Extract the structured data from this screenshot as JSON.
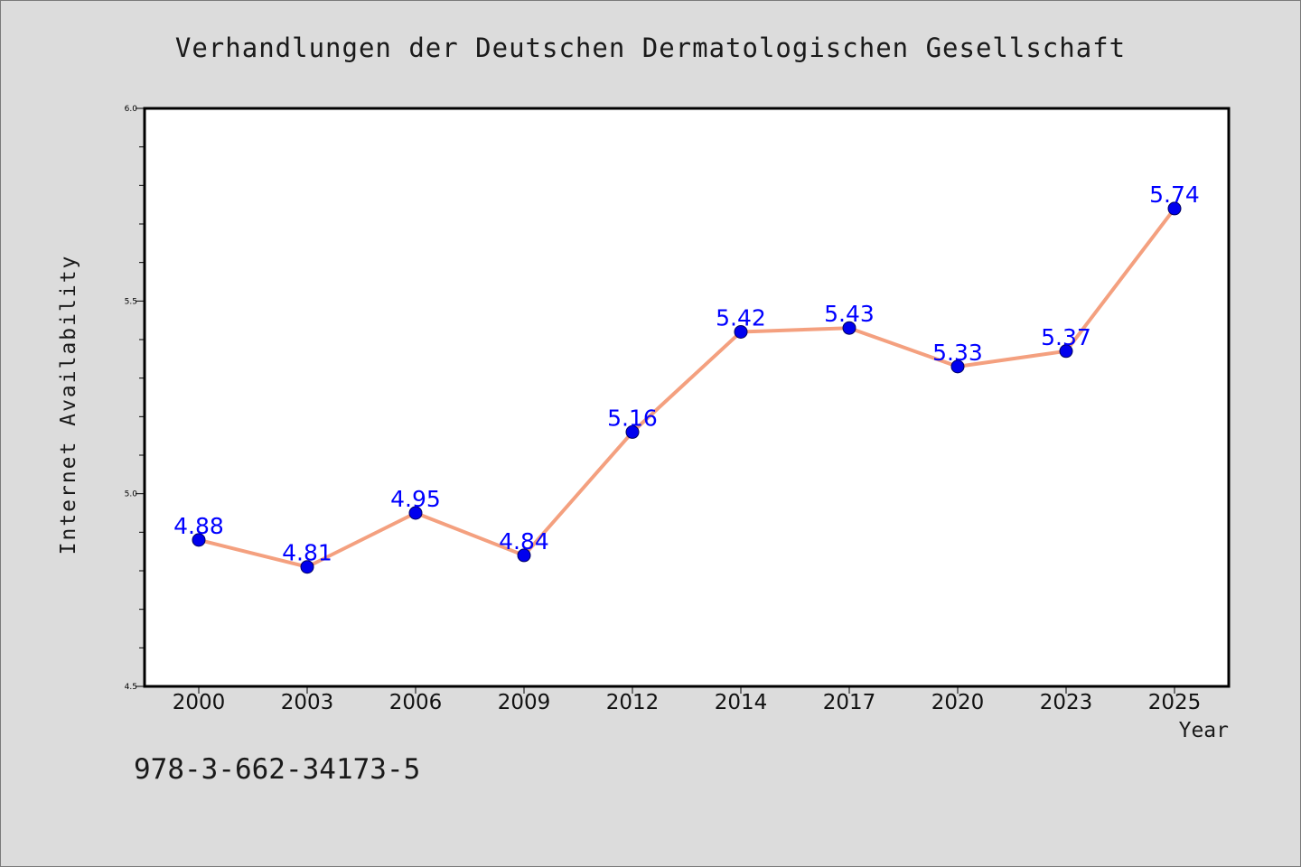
{
  "chart_data": {
    "type": "line",
    "title": "Verhandlungen der Deutschen Dermatologischen Gesellschaft",
    "xlabel": "Year",
    "ylabel": "Internet Availability",
    "categories": [
      "2000",
      "2003",
      "2006",
      "2009",
      "2012",
      "2014",
      "2017",
      "2020",
      "2023",
      "2025"
    ],
    "series": [
      {
        "values": [
          4.88,
          4.81,
          4.95,
          4.84,
          5.16,
          5.42,
          5.43,
          5.33,
          5.37,
          5.74
        ],
        "labels": [
          "4.88",
          "4.81",
          "4.95",
          "4.84",
          "5.16",
          "5.42",
          "5.43",
          "5.33",
          "5.37",
          "5.74"
        ]
      }
    ],
    "ylim": [
      4.5,
      6.0
    ],
    "yticks": [
      "4.5",
      "5.0",
      "5.5",
      "6.0"
    ],
    "grid": false,
    "legend": "none",
    "colors": {
      "line": "#f4a07f",
      "marker": "#0000ee",
      "label": "#0000ff",
      "background": "#dcdcdc",
      "plot_background": "#ffffff"
    }
  },
  "footer": {
    "identifier": "978-3-662-34173-5"
  }
}
